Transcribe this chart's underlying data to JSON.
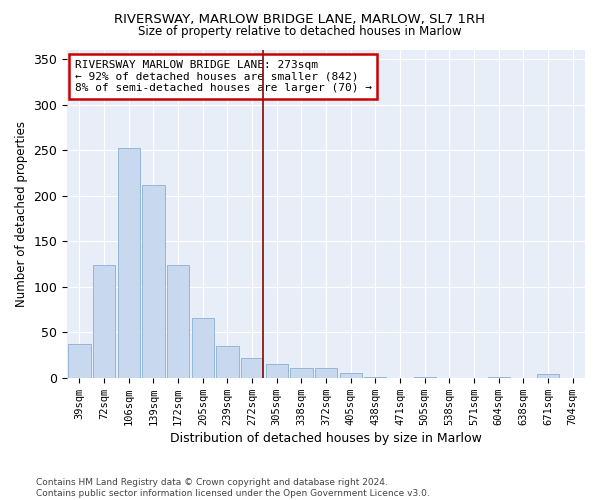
{
  "title1": "RIVERSWAY, MARLOW BRIDGE LANE, MARLOW, SL7 1RH",
  "title2": "Size of property relative to detached houses in Marlow",
  "xlabel": "Distribution of detached houses by size in Marlow",
  "ylabel": "Number of detached properties",
  "bar_color": "#c8d8ee",
  "bar_edge_color": "#8ab0d0",
  "plot_bg_color": "#e8eef8",
  "fig_bg_color": "#ffffff",
  "marker_line_color": "#8b1a1a",
  "annotation_text": "RIVERSWAY MARLOW BRIDGE LANE: 273sqm\n← 92% of detached houses are smaller (842)\n8% of semi-detached houses are larger (70) →",
  "annotation_box_color": "white",
  "annotation_box_edge": "#cc0000",
  "categories": [
    "39sqm",
    "72sqm",
    "106sqm",
    "139sqm",
    "172sqm",
    "205sqm",
    "239sqm",
    "272sqm",
    "305sqm",
    "338sqm",
    "372sqm",
    "405sqm",
    "438sqm",
    "471sqm",
    "505sqm",
    "538sqm",
    "571sqm",
    "604sqm",
    "638sqm",
    "671sqm",
    "704sqm"
  ],
  "values": [
    37,
    124,
    252,
    212,
    124,
    66,
    35,
    22,
    15,
    11,
    11,
    5,
    1,
    0,
    1,
    0,
    0,
    1,
    0,
    4,
    0
  ],
  "ylim": [
    0,
    360
  ],
  "footnote": "Contains HM Land Registry data © Crown copyright and database right 2024.\nContains public sector information licensed under the Open Government Licence v3.0."
}
